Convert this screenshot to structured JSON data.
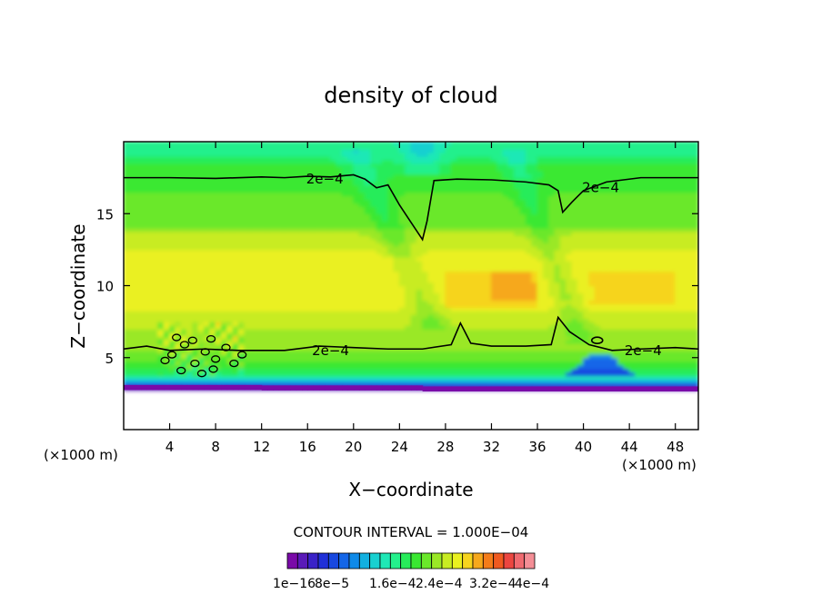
{
  "chart_data": {
    "type": "heatmap",
    "title": "density of cloud",
    "xlabel": "X−coordinate",
    "ylabel": "Z−coordinate",
    "x_unit_left": "(×1000 m)",
    "x_unit_right": "(×1000 m)",
    "xlim": [
      0,
      50
    ],
    "ylim": [
      0,
      20
    ],
    "x_ticks": [
      4,
      8,
      12,
      16,
      20,
      24,
      28,
      32,
      36,
      40,
      44,
      48
    ],
    "y_ticks": [
      5,
      10,
      15
    ],
    "grid": false,
    "contour_interval_text": "CONTOUR INTERVAL = 1.000E−04",
    "contour_label": "2e−4",
    "contour_level": 0.0002,
    "colorbar": {
      "colors": [
        "#7a0aa8",
        "#5a1ab8",
        "#3a22c8",
        "#2030d8",
        "#1848e0",
        "#1466e8",
        "#0f8ae8",
        "#12b0e0",
        "#18d0d0",
        "#1fe8b6",
        "#24f08c",
        "#27ec5a",
        "#3ae832",
        "#6ae82a",
        "#9ae826",
        "#c8ec22",
        "#eaf020",
        "#f6d41e",
        "#f6a81c",
        "#f47c1a",
        "#f05a20",
        "#ec4640",
        "#f06a70",
        "#f48e96"
      ],
      "tick_labels": [
        "1e−16",
        "8e−5",
        "1.6e−4",
        "2.4e−4",
        "3.2e−4",
        "4e−4"
      ]
    }
  }
}
